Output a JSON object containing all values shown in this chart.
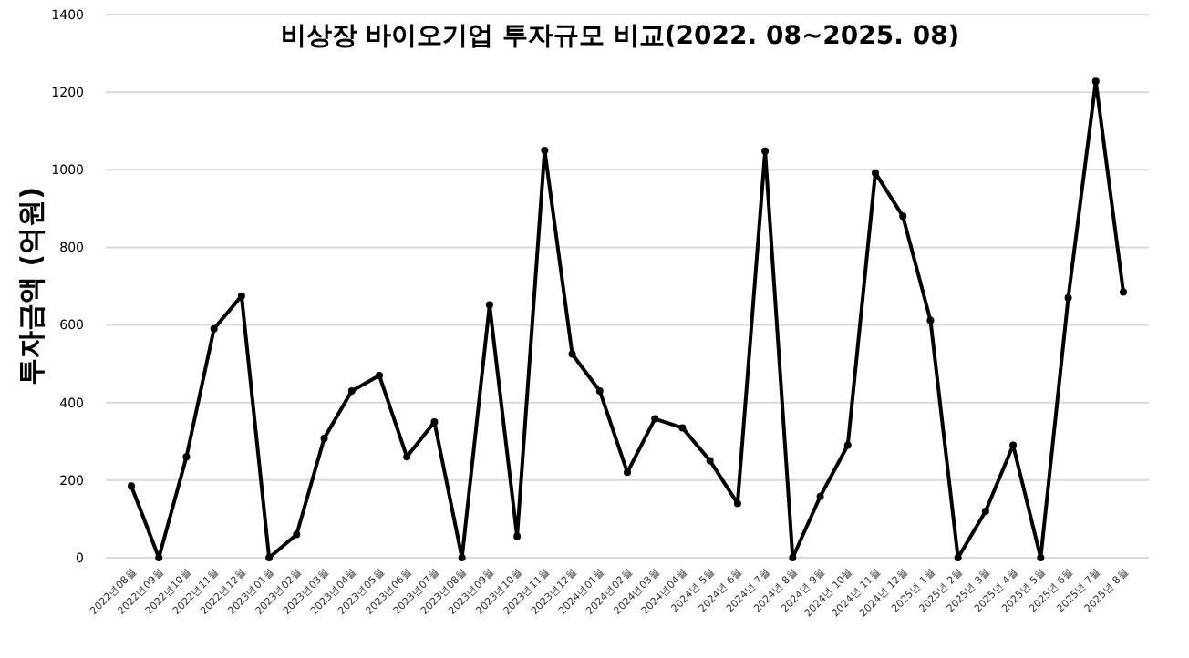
{
  "chart_data": {
    "type": "line",
    "title": "비상장 바이오기업 투자규모 비교(2022. 08~2025. 08)",
    "ylabel": "투자금액 (억원)",
    "categories": [
      "2022년08월",
      "2022년09월",
      "2022년10월",
      "2022년11월",
      "2022년12월",
      "2023년01월",
      "2023년02월",
      "2023년03월",
      "2023년04월",
      "2023년05월",
      "2023년06월",
      "2023년07월",
      "2023년08월",
      "2023년09월",
      "2023년10월",
      "2023년11월",
      "2023년12월",
      "2024년01월",
      "2024년02월",
      "2024년03월",
      "2024년04월",
      "2024년 5월",
      "2024년 6월",
      "2024년 7월",
      "2024년 8월",
      "2024년 9월",
      "2024년 10월",
      "2024년 11월",
      "2024년 12월",
      "2025년 1월",
      "2025년 2월",
      "2025년 3월",
      "2025년 4월",
      "2025년 5월",
      "2025년 6월",
      "2025년 7월",
      "2025년 8월"
    ],
    "series": [
      {
        "color": "#000000",
        "values": [
          185,
          0,
          260,
          590,
          675,
          0,
          60,
          308,
          430,
          470,
          260,
          350,
          0,
          652,
          55,
          1050,
          525,
          430,
          220,
          358,
          335,
          250,
          140,
          1048,
          0,
          158,
          290,
          992,
          880,
          612,
          0,
          120,
          290,
          0,
          670,
          1228,
          685
        ]
      }
    ],
    "ylim": [
      0,
      1400
    ],
    "yticks": [
      0,
      200,
      400,
      600,
      800,
      1000,
      1200,
      1400
    ],
    "grid": "y",
    "marker": "circle",
    "line_style": "solid"
  }
}
